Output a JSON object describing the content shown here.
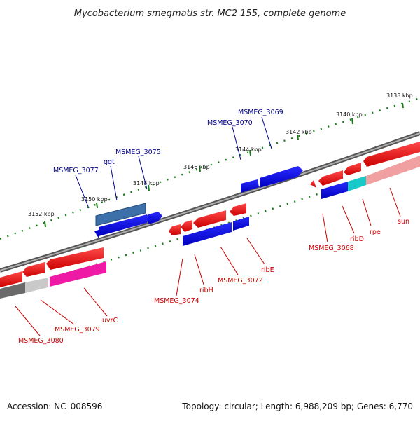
{
  "title": "Mycobacterium smegmatis str. MC2 155, complete genome",
  "footer": {
    "accession": "Accession: NC_008596",
    "summary": "Topology: circular; Length: 6,988,209 bp; Genes: 6,770"
  },
  "scale_ticks": [
    "3138 kbp",
    "3140 kbp",
    "3142 kbp",
    "3144 kbp",
    "3146 kbp",
    "3148 kbp",
    "3150 kbp",
    "3152 kbp"
  ],
  "genes_upper": [
    "MSMEG_3069",
    "MSMEG_3070",
    "MSMEG_3075",
    "ggt",
    "MSMEG_3077"
  ],
  "genes_lower": [
    "MSMEG_3068",
    "ribD",
    "rpe",
    "sun",
    "ribE",
    "MSMEG_3072",
    "ribH",
    "MSMEG_3074",
    "uvrC",
    "MSMEG_3079",
    "MSMEG_3080"
  ],
  "colors": {
    "plus_strand_label": "#00008b",
    "minus_strand_label": "#cc0000",
    "tick": "#1a7f1a",
    "backbone": "#7a7a7a",
    "gene_red": "#ee0000",
    "gene_blue": "#0000ee"
  }
}
